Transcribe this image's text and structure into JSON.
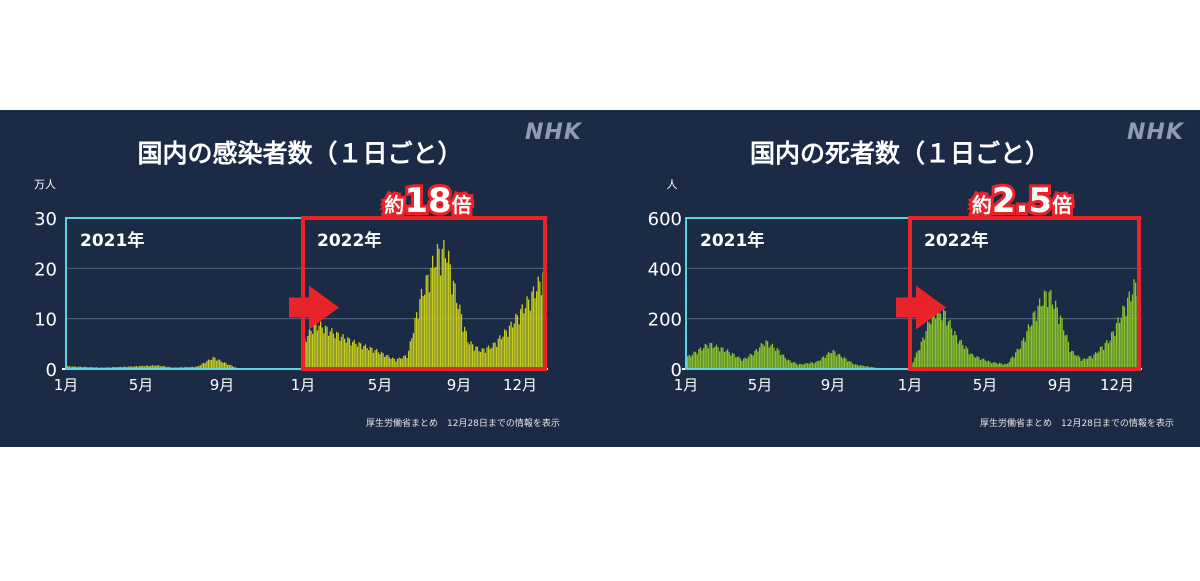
{
  "left": {
    "logo": "NHK",
    "title": "国内の感染者数（１日ごと）",
    "footnote": "厚生労働省まとめ　12月28日までの情報を表示"
  },
  "right": {
    "logo": "NHK",
    "title": "国内の死者数（１日ごと）",
    "footnote": "厚生労働省まとめ　12月28日までの情報を表示"
  },
  "colors": {
    "background": "#1b2a45",
    "box_2021": "#5fd3e0",
    "box_2022": "#e8232a",
    "bars_cases": "#c8cc1e",
    "bars_deaths": "#8cc42a",
    "arrow": "#e8232a"
  },
  "chart_data": [
    {
      "type": "bar",
      "title": "国内の感染者数（１日ごと）",
      "unit_label": "万人",
      "ylim": [
        0,
        30
      ],
      "yticks": [
        "0",
        "10",
        "20",
        "30"
      ],
      "xticks": [
        "1月",
        "5月",
        "9月",
        "1月",
        "5月",
        "9月",
        "12月"
      ],
      "period_labels": [
        "2021年",
        "2022年"
      ],
      "multiplier_prefix": "約",
      "multiplier_value": "18",
      "multiplier_suffix": "倍",
      "series": [
        {
          "keyframes_2021": [
            [
              0,
              0.6
            ],
            [
              0.15,
              0.3
            ],
            [
              0.3,
              0.6
            ],
            [
              0.38,
              0.8
            ],
            [
              0.45,
              0.3
            ],
            [
              0.55,
              0.5
            ],
            [
              0.62,
              2.5
            ],
            [
              0.66,
              1.5
            ],
            [
              0.72,
              0.2
            ],
            [
              1.0,
              0.1
            ]
          ],
          "keyframes_2022": [
            [
              0,
              6
            ],
            [
              0.05,
              10
            ],
            [
              0.12,
              8
            ],
            [
              0.2,
              6
            ],
            [
              0.3,
              4
            ],
            [
              0.38,
              2
            ],
            [
              0.43,
              3
            ],
            [
              0.48,
              15
            ],
            [
              0.55,
              25
            ],
            [
              0.59,
              26
            ],
            [
              0.63,
              16
            ],
            [
              0.68,
              6
            ],
            [
              0.73,
              4
            ],
            [
              0.78,
              5
            ],
            [
              0.85,
              9
            ],
            [
              0.93,
              15
            ],
            [
              1.0,
              21
            ]
          ]
        }
      ]
    },
    {
      "type": "bar",
      "title": "国内の死者数（１日ごと）",
      "unit_label": "人",
      "ylim": [
        0,
        600
      ],
      "yticks": [
        "0",
        "200",
        "400",
        "600"
      ],
      "xticks": [
        "1月",
        "5月",
        "9月",
        "1月",
        "5月",
        "9月",
        "12月"
      ],
      "period_labels": [
        "2021年",
        "2022年"
      ],
      "multiplier_prefix": "約",
      "multiplier_value": "2.5",
      "multiplier_suffix": "倍",
      "series": [
        {
          "keyframes_2021": [
            [
              0,
              50
            ],
            [
              0.1,
              110
            ],
            [
              0.18,
              80
            ],
            [
              0.25,
              40
            ],
            [
              0.3,
              70
            ],
            [
              0.35,
              120
            ],
            [
              0.4,
              90
            ],
            [
              0.45,
              40
            ],
            [
              0.5,
              20
            ],
            [
              0.58,
              30
            ],
            [
              0.65,
              80
            ],
            [
              0.7,
              50
            ],
            [
              0.75,
              20
            ],
            [
              0.85,
              5
            ],
            [
              1.0,
              2
            ]
          ],
          "keyframes_2022": [
            [
              0,
              10
            ],
            [
              0.05,
              120
            ],
            [
              0.1,
              260
            ],
            [
              0.15,
              240
            ],
            [
              0.2,
              140
            ],
            [
              0.27,
              60
            ],
            [
              0.35,
              30
            ],
            [
              0.42,
              20
            ],
            [
              0.48,
              100
            ],
            [
              0.55,
              260
            ],
            [
              0.6,
              340
            ],
            [
              0.65,
              240
            ],
            [
              0.7,
              80
            ],
            [
              0.75,
              40
            ],
            [
              0.8,
              60
            ],
            [
              0.87,
              130
            ],
            [
              0.93,
              260
            ],
            [
              1.0,
              410
            ]
          ]
        }
      ]
    }
  ]
}
